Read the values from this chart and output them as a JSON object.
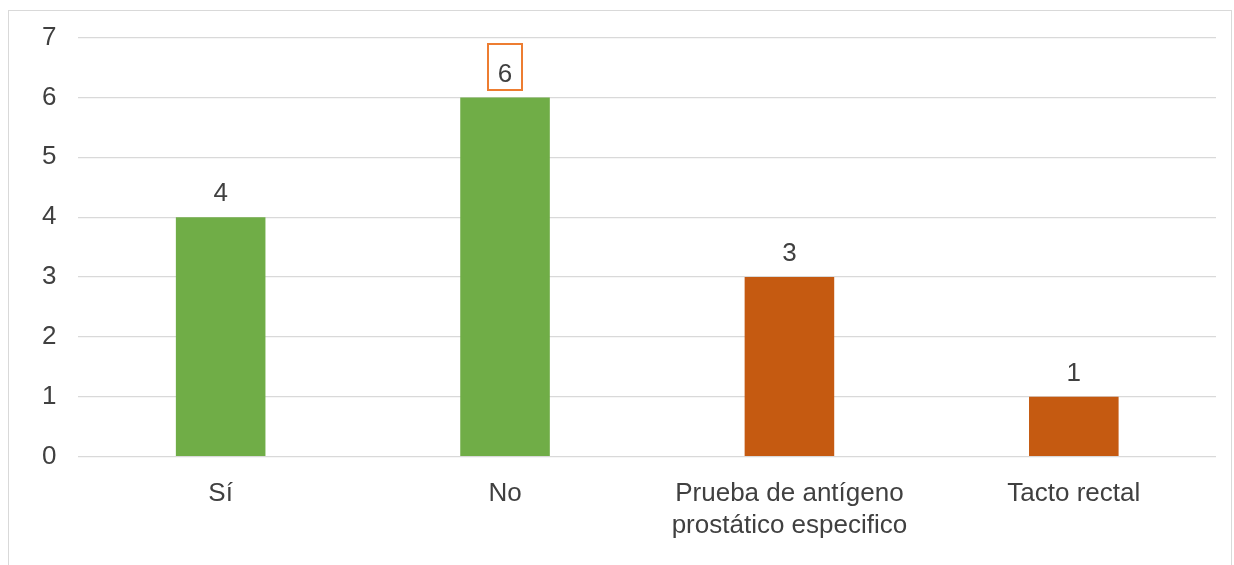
{
  "chart_data": {
    "type": "bar",
    "categories": [
      "Sí",
      "No",
      "Prueba de antígeno prostático especifico",
      "Tacto rectal"
    ],
    "values": [
      4,
      6,
      3,
      1
    ],
    "colors": [
      "#70ad47",
      "#70ad47",
      "#c55a11",
      "#c55a11"
    ],
    "ylim": [
      0,
      7
    ],
    "yticks": [
      0,
      1,
      2,
      3,
      4,
      5,
      6,
      7
    ],
    "grid": "y",
    "legend": false,
    "data_labels": true
  }
}
